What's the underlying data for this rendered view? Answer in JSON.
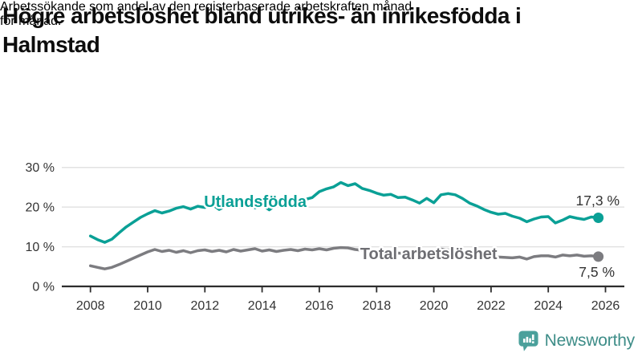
{
  "title": {
    "line1": "Högre arbetslöshet bland utrikes- än inrikesfödda i",
    "line2": "Halmstad"
  },
  "subtitle": {
    "line1": "Arbetssökande som andel av den registerbaserade arbetskraften månad",
    "line2": "för månad."
  },
  "footer": {
    "brand": "Newsworthy",
    "logo_icon": "newsworthy-speech-bubble-bar-chart-icon",
    "brand_color": "#3e8d88",
    "icon_color": "#4aa09b"
  },
  "colors": {
    "background": "#ffffff",
    "gridline": "#e2e2e2",
    "axis": "#2d2d2d",
    "tick_text": "#333333"
  },
  "chart_data": {
    "type": "line",
    "title": "Högre arbetslöshet bland utrikes- än inrikesfödda i Halmstad",
    "subtitle": "Arbetssökande som andel av den registerbaserade arbetskraften månad för månad.",
    "xlabel": "",
    "ylabel": "",
    "xlim": [
      2007,
      2026.66
    ],
    "ylim": [
      0,
      30
    ],
    "grid": "horizontal",
    "legend_position": "inline-labels",
    "x_ticks": [
      2008,
      2010,
      2012,
      2014,
      2016,
      2018,
      2020,
      2022,
      2024,
      2026
    ],
    "x_tick_labels": [
      "2008",
      "2010",
      "2012",
      "2014",
      "2016",
      "2018",
      "2020",
      "2022",
      "2024",
      "2026"
    ],
    "y_ticks": [
      0,
      10,
      20,
      30
    ],
    "y_tick_labels": [
      "0 %",
      "10 %",
      "20 %",
      "30 %"
    ],
    "x_start": 2008,
    "x_step": 0.25,
    "series": [
      {
        "name": "Utlandsfödda",
        "color": "#0aa096",
        "label_color": "#0aa096",
        "end_label": "17,3 %",
        "end_value": 17.3,
        "label_pos": {
          "x": 2013.76,
          "y": 20.0
        },
        "end_label_pos": {
          "x": 2026.49,
          "y": 20.4
        },
        "values": [
          12.7,
          11.8,
          11.1,
          11.9,
          13.5,
          15.0,
          16.2,
          17.4,
          18.3,
          19.1,
          18.5,
          19.0,
          19.7,
          20.1,
          19.5,
          20.2,
          19.9,
          20.7,
          19.4,
          20.3,
          20.8,
          19.9,
          21.0,
          19.8,
          20.5,
          19.3,
          20.6,
          21.0,
          20.4,
          21.2,
          21.9,
          22.4,
          23.9,
          24.6,
          25.1,
          26.2,
          25.4,
          25.9,
          24.7,
          24.2,
          23.5,
          23.0,
          23.2,
          22.4,
          22.5,
          21.8,
          21.0,
          22.2,
          21.1,
          23.1,
          23.4,
          23.1,
          22.2,
          21.0,
          20.3,
          19.4,
          18.7,
          18.2,
          18.4,
          17.7,
          17.2,
          16.3,
          17.0,
          17.5,
          17.6,
          16.0,
          16.7,
          17.6,
          17.2,
          16.9,
          17.5,
          17.3
        ]
      },
      {
        "name": "Total arbetslöshet",
        "color": "#7c7c80",
        "label_color": "#6e6e73",
        "end_label": "7,5 %",
        "end_value": 7.5,
        "label_pos": {
          "x": 2019.82,
          "y": 6.88
        },
        "end_label_pos": {
          "x": 2026.32,
          "y": 2.43
        },
        "values": [
          5.2,
          4.8,
          4.4,
          4.8,
          5.5,
          6.3,
          7.1,
          7.9,
          8.7,
          9.3,
          8.8,
          9.1,
          8.6,
          9.0,
          8.5,
          9.0,
          9.2,
          8.8,
          9.1,
          8.7,
          9.3,
          8.9,
          9.2,
          9.5,
          8.9,
          9.2,
          8.8,
          9.1,
          9.3,
          9.0,
          9.4,
          9.2,
          9.5,
          9.2,
          9.6,
          9.8,
          9.7,
          9.3,
          9.1,
          8.9,
          8.8,
          8.6,
          8.5,
          8.4,
          8.3,
          8.2,
          8.4,
          8.5,
          8.7,
          9.4,
          9.2,
          9.0,
          8.8,
          8.4,
          8.1,
          7.8,
          7.6,
          7.4,
          7.3,
          7.2,
          7.4,
          6.9,
          7.5,
          7.7,
          7.7,
          7.4,
          7.9,
          7.7,
          7.9,
          7.6,
          7.7,
          7.5
        ]
      }
    ]
  }
}
